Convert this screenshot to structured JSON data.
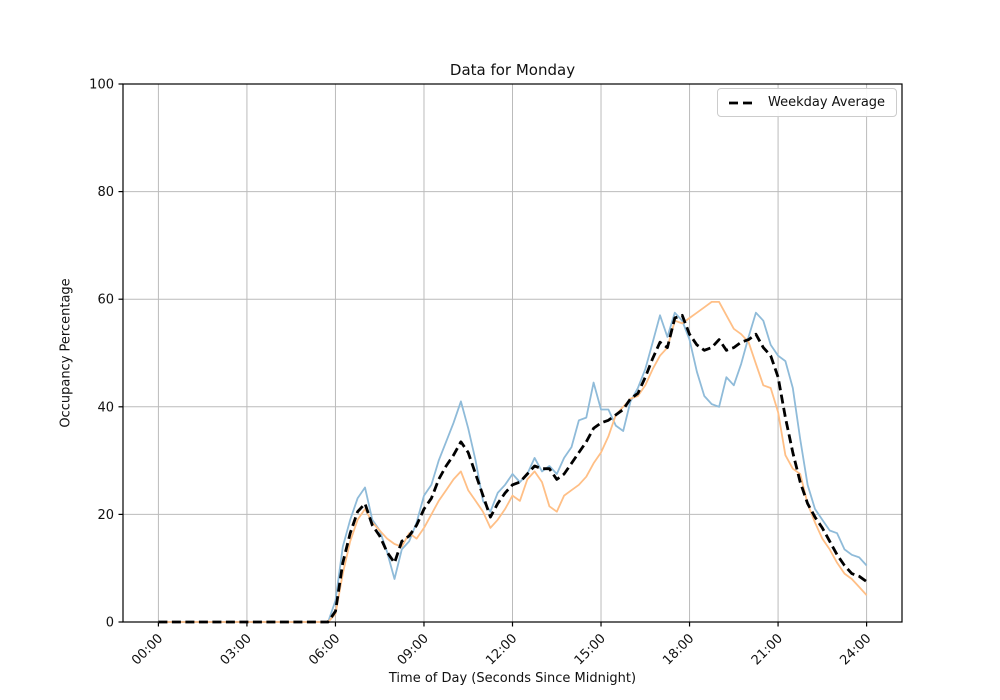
{
  "figure": {
    "title": "Data for Monday",
    "xlabel": "Time of Day (Seconds Since Midnight)",
    "ylabel": "Occupancy Percentage",
    "legend": {
      "label": "Weekday Average",
      "line_style": "dashed",
      "line_color": "#000000"
    }
  },
  "chart_data": {
    "type": "line",
    "title": "Data for Monday",
    "xlabel": "Time of Day (Seconds Since Midnight)",
    "ylabel": "Occupancy Percentage",
    "grid": true,
    "legend_position": "upper right",
    "ylim": [
      0,
      100
    ],
    "xlim_hours": [
      -1.2,
      25.2
    ],
    "y_ticks": [
      0,
      20,
      40,
      60,
      80,
      100
    ],
    "x_tick_hours": [
      0,
      3,
      6,
      9,
      12,
      15,
      18,
      21,
      24
    ],
    "x_tick_labels": [
      "00:00",
      "03:00",
      "06:00",
      "09:00",
      "12:00",
      "15:00",
      "18:00",
      "21:00",
      "24:00"
    ],
    "x_start_hour": 0,
    "x_step_hours": 0.25,
    "n_points": 97,
    "series": [
      {
        "name": "monday-sample-blue",
        "legend_label": null,
        "color": "#8fbbd9",
        "line_width": 1.8,
        "dash": null,
        "values": [
          0,
          0,
          0,
          0,
          0,
          0,
          0,
          0,
          0,
          0,
          0,
          0,
          0,
          0,
          0,
          0,
          0,
          0,
          0,
          0,
          0,
          0,
          0,
          0,
          4,
          14,
          19,
          23,
          25,
          19,
          17,
          13,
          8,
          13.5,
          15,
          18.5,
          23.5,
          25.5,
          30,
          33.5,
          37,
          41,
          36,
          30,
          22.5,
          20.5,
          24,
          25.5,
          27.5,
          26,
          27.5,
          30.5,
          28,
          29,
          27.5,
          30.5,
          32.5,
          37.5,
          38,
          44.5,
          39.5,
          39.5,
          36.5,
          35.5,
          41,
          43.5,
          47,
          52,
          57,
          53,
          57.5,
          56,
          52.5,
          46.5,
          42,
          40.5,
          40,
          45.5,
          44,
          48,
          53,
          57.5,
          56,
          51.5,
          49.5,
          48.5,
          43.5,
          34,
          25.5,
          21,
          19,
          17,
          16.5,
          13.5,
          12.5,
          12,
          10.5
        ]
      },
      {
        "name": "monday-sample-orange",
        "legend_label": null,
        "color": "#ffbf86",
        "line_width": 1.8,
        "dash": null,
        "values": [
          0,
          0,
          0,
          0,
          0,
          0,
          0,
          0,
          0,
          0,
          0,
          0,
          0,
          0,
          0,
          0,
          0,
          0,
          0,
          0,
          0,
          0,
          0,
          0,
          1.5,
          9,
          15,
          19,
          21,
          18.5,
          17,
          15.5,
          14.5,
          14,
          16.5,
          15.5,
          17.5,
          20,
          22.5,
          24.5,
          26.5,
          28,
          24.5,
          22.5,
          20.5,
          17.5,
          19,
          21,
          23.5,
          22.5,
          26.5,
          28,
          26,
          21.5,
          20.5,
          23.5,
          24.5,
          25.5,
          27,
          29.5,
          31.5,
          34.5,
          38.5,
          40,
          41.5,
          42,
          44,
          47,
          49.5,
          51,
          56,
          55.5,
          56.5,
          57.5,
          58.5,
          59.5,
          59.5,
          57,
          54.5,
          53.5,
          52,
          48,
          44,
          43.5,
          39,
          31,
          28.5,
          27.5,
          22,
          18.5,
          15.5,
          13.5,
          11,
          9,
          8,
          6.5,
          5
        ]
      },
      {
        "name": "weekday-average",
        "legend_label": "Weekday Average",
        "color": "#000000",
        "line_width": 2.8,
        "dash": "9 4.5",
        "values": [
          0,
          0,
          0,
          0,
          0,
          0,
          0,
          0,
          0,
          0,
          0,
          0,
          0,
          0,
          0,
          0,
          0,
          0,
          0,
          0,
          0,
          0,
          0,
          0,
          2,
          11,
          16.5,
          20.5,
          22,
          18,
          16,
          13,
          11,
          15,
          16,
          18,
          21,
          23,
          26.5,
          29,
          31,
          33.5,
          31.5,
          27.5,
          23.5,
          19.5,
          22,
          24,
          25.5,
          26,
          27.5,
          29,
          28.5,
          28.5,
          26.5,
          27.5,
          29.5,
          31.5,
          33.5,
          36,
          37,
          37.5,
          38.5,
          39.5,
          41.5,
          42.5,
          45.5,
          49,
          52,
          51,
          56.5,
          57,
          53.5,
          51.5,
          50.5,
          51,
          52.5,
          50.5,
          51,
          52,
          52.5,
          53.5,
          51,
          49.5,
          45.5,
          38,
          31.5,
          26,
          22,
          19.5,
          17.5,
          15,
          12.5,
          10.5,
          9,
          8.5,
          7.5
        ]
      }
    ],
    "colors": {
      "grid": "#bbbbbb",
      "spine": "#000000",
      "tick_label": "#111111"
    }
  }
}
